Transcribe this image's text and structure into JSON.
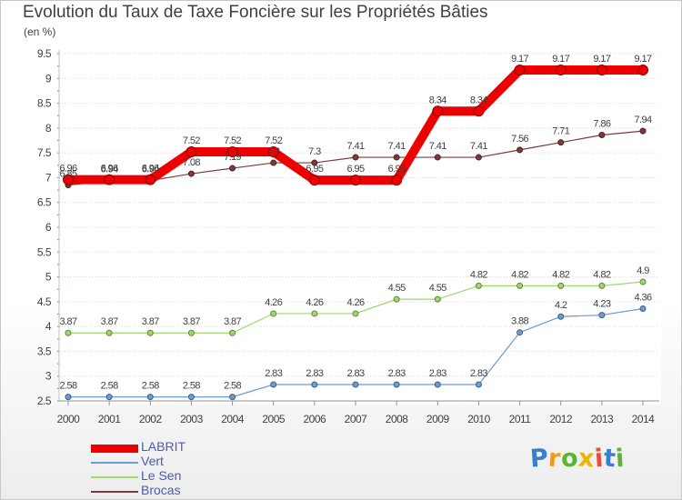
{
  "title": "Evolution du Taux de Taxe Foncière sur les Propriétés Bâties",
  "units": "(en %)",
  "logo": {
    "letters": [
      {
        "ch": "P",
        "color": "#3a7fcf"
      },
      {
        "ch": "r",
        "color": "#f39c12"
      },
      {
        "ch": "o",
        "color": "#5cb531"
      },
      {
        "ch": "x",
        "color": "#f0b400"
      },
      {
        "ch": "i",
        "color": "#e74c3c"
      },
      {
        "ch": "t",
        "color": "#3a7fcf"
      },
      {
        "ch": "i",
        "color": "#5cb531"
      }
    ]
  },
  "chart_data": {
    "type": "line",
    "title": "Evolution du Taux de Taxe Foncière sur les Propriétés Bâties",
    "ylabel": "(en %)",
    "ylim": [
      2.5,
      9.5
    ],
    "yticks": [
      "2.5",
      "3",
      "3.5",
      "4",
      "4.5",
      "5",
      "5.5",
      "6",
      "6.5",
      "7",
      "7.5",
      "8",
      "8.5",
      "9",
      "9.5"
    ],
    "grid": "horizontal dotted",
    "legend": "bottom-left",
    "categories": [
      "2000",
      "2001",
      "2002",
      "2003",
      "2004",
      "2005",
      "2006",
      "2007",
      "2008",
      "2009",
      "2010",
      "2011",
      "2012",
      "2013",
      "2014"
    ],
    "series": [
      {
        "name": "Brocas",
        "color": "#7b3b3b",
        "values": [
          6.85,
          6.94,
          6.94,
          7.08,
          7.19,
          7.3,
          7.3,
          7.41,
          7.41,
          7.41,
          7.41,
          7.56,
          7.71,
          7.86,
          7.94
        ],
        "labels": [
          "6.85",
          "6.94",
          "6.94",
          "7.08",
          "7.19",
          "7.3",
          "7.3",
          "7.41",
          "7.41",
          "7.41",
          "7.41",
          "7.56",
          "7.71",
          "7.86",
          "7.94"
        ]
      },
      {
        "name": "Le Sen",
        "color": "#9fd86b",
        "values": [
          3.87,
          3.87,
          3.87,
          3.87,
          3.87,
          4.26,
          4.26,
          4.26,
          4.55,
          4.55,
          4.82,
          4.82,
          4.82,
          4.82,
          4.9
        ],
        "labels": [
          "3.87",
          "3.87",
          "3.87",
          "3.87",
          "3.87",
          "4.26",
          "4.26",
          "4.26",
          "4.55",
          "4.55",
          "4.82",
          "4.82",
          "4.82",
          "4.82",
          "4.9"
        ]
      },
      {
        "name": "Vert",
        "color": "#6a9dd1",
        "values": [
          2.58,
          2.58,
          2.58,
          2.58,
          2.58,
          2.83,
          2.83,
          2.83,
          2.83,
          2.83,
          2.83,
          3.88,
          4.2,
          4.23,
          4.36
        ],
        "labels": [
          "2.58",
          "2.58",
          "2.58",
          "2.58",
          "2.58",
          "2.83",
          "2.83",
          "2.83",
          "2.83",
          "2.83",
          "2.83",
          "3.88",
          "4.2",
          "4.23",
          "4.36"
        ]
      },
      {
        "name": "LABRIT",
        "color": "#ee0000",
        "values": [
          6.96,
          6.96,
          6.96,
          7.52,
          7.52,
          7.52,
          6.95,
          6.95,
          6.95,
          8.34,
          8.34,
          9.17,
          9.17,
          9.17,
          9.17
        ],
        "labels": [
          "6.96",
          "6.96",
          "6.96",
          "7.52",
          "7.52",
          "7.52",
          "6.95",
          "6.95",
          "6.95",
          "8.34",
          "8.34",
          "9.17",
          "9.17",
          "9.17",
          "9.17"
        ]
      }
    ]
  },
  "legend_order": [
    "LABRIT",
    "Vert",
    "Le Sen",
    "Brocas"
  ]
}
